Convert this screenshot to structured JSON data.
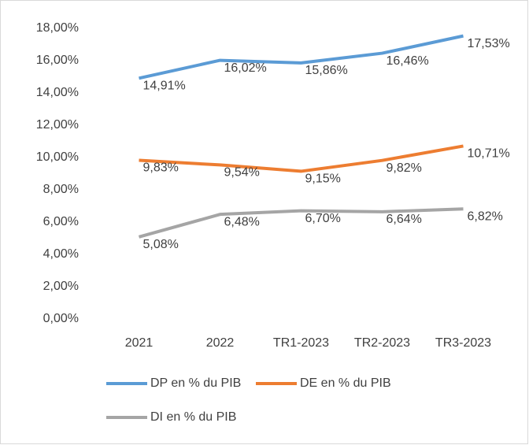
{
  "chart_data": {
    "type": "line",
    "categories": [
      "2021",
      "2022",
      "TR1-2023",
      "TR2-2023",
      "TR3-2023"
    ],
    "series": [
      {
        "name": "DP en % du PIB",
        "color": "#5b9bd5",
        "values": [
          14.91,
          16.02,
          15.86,
          16.46,
          17.53
        ],
        "value_labels": [
          "14,91%",
          "16,02%",
          "15,86%",
          "16,46%",
          "17,53%"
        ]
      },
      {
        "name": "DE en % du PIB",
        "color": "#ed7d31",
        "values": [
          9.83,
          9.54,
          9.15,
          9.82,
          10.71
        ],
        "value_labels": [
          "9,83%",
          "9,54%",
          "9,15%",
          "9,82%",
          "10,71%"
        ]
      },
      {
        "name": "DI en % du PIB",
        "color": "#a5a5a5",
        "values": [
          5.08,
          6.48,
          6.7,
          6.64,
          6.82
        ],
        "value_labels": [
          "5,08%",
          "6,48%",
          "6,70%",
          "6,64%",
          "6,82%"
        ]
      }
    ],
    "ylim": [
      0,
      18
    ],
    "yticks": [
      {
        "value": 0,
        "label": "0,00%"
      },
      {
        "value": 2,
        "label": "2,00%"
      },
      {
        "value": 4,
        "label": "4,00%"
      },
      {
        "value": 6,
        "label": "6,00%"
      },
      {
        "value": 8,
        "label": "8,00%"
      },
      {
        "value": 10,
        "label": "10,00%"
      },
      {
        "value": 12,
        "label": "12,00%"
      },
      {
        "value": 14,
        "label": "14,00%"
      },
      {
        "value": 16,
        "label": "16,00%"
      },
      {
        "value": 18,
        "label": "18,00%"
      }
    ],
    "grid": false
  }
}
